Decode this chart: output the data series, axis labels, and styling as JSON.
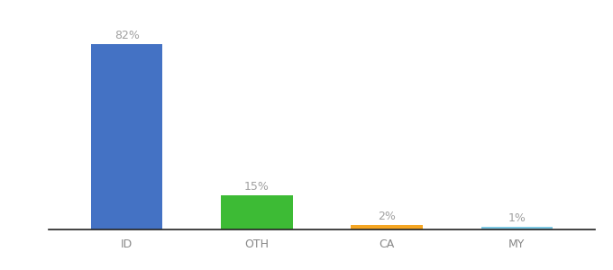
{
  "categories": [
    "ID",
    "OTH",
    "CA",
    "MY"
  ],
  "values": [
    82,
    15,
    2,
    1
  ],
  "bar_colors": [
    "#4472c4",
    "#3dbb35",
    "#f5a623",
    "#7ec8e3"
  ],
  "label_color": "#a0a0a0",
  "value_labels": [
    "82%",
    "15%",
    "2%",
    "1%"
  ],
  "background_color": "#ffffff",
  "ylim": [
    0,
    92
  ],
  "bar_width": 0.55,
  "label_fontsize": 9,
  "tick_fontsize": 9,
  "tick_color": "#888888"
}
